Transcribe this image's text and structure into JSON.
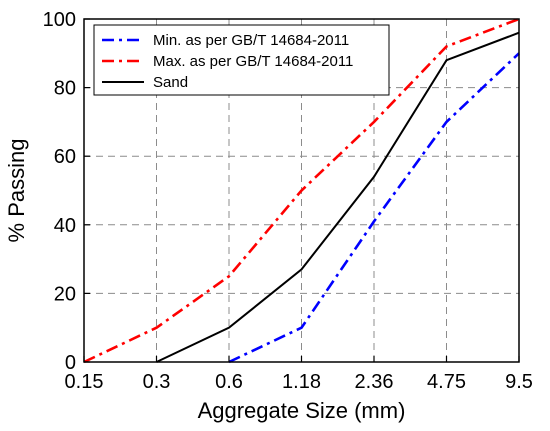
{
  "chart_data": {
    "type": "line",
    "xlabel": "Aggregate Size (mm)",
    "ylabel": "% Passing",
    "x_scale": "categorical",
    "categories": [
      "0.15",
      "0.3",
      "0.6",
      "1.18",
      "2.36",
      "4.75",
      "9.5"
    ],
    "ylim": [
      0,
      100
    ],
    "yticks": [
      "0",
      "20",
      "40",
      "60",
      "80",
      "100"
    ],
    "grid": true,
    "legend_position": "top-left",
    "series": [
      {
        "name": "Min. as per GB/T 14684-2011",
        "values": [
          null,
          null,
          0,
          10,
          41,
          70,
          90
        ],
        "color": "#0000ff",
        "style": "dash-dot"
      },
      {
        "name": "Max. as per GB/T 14684-2011",
        "values": [
          0,
          10,
          25,
          50,
          70,
          92,
          100
        ],
        "color": "#ff0000",
        "style": "dash-dot"
      },
      {
        "name": "Sand",
        "values": [
          null,
          0,
          10,
          27,
          54,
          88,
          96
        ],
        "color": "#000000",
        "style": "solid"
      }
    ]
  }
}
